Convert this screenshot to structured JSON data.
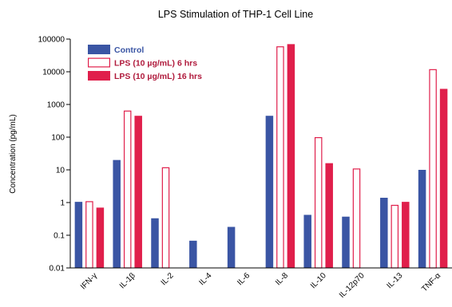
{
  "chart_data": {
    "type": "bar",
    "title": "LPS Stimulation of THP-1 Cell Line",
    "xlabel": "",
    "ylabel": "Concentration (pg/mL)",
    "yscale": "log",
    "ylim": [
      0.01,
      100000
    ],
    "yticks": [
      "0.01",
      "0.1",
      "1",
      "10",
      "100",
      "1000",
      "10000",
      "100000"
    ],
    "categories": [
      "IFN-γ",
      "IL-1β",
      "IL-2",
      "IL-4",
      "IL-6",
      "IL-8",
      "IL-10",
      "IL-12p70",
      "IL-13",
      "TNF-α"
    ],
    "series": [
      {
        "name": "Control",
        "style": "solid",
        "color": "#3a55a4",
        "values": [
          1.05,
          20,
          0.33,
          0.068,
          0.18,
          450,
          0.42,
          0.37,
          1.4,
          10
        ]
      },
      {
        "name": "LPS (10 µg/mL) 6 hrs",
        "style": "outline",
        "color": "#e01f4b",
        "values": [
          1.1,
          650,
          12,
          null,
          null,
          60000,
          100,
          11,
          0.85,
          12000
        ]
      },
      {
        "name": "LPS (10 µg/mL) 16 hrs",
        "style": "solid",
        "color": "#e01f4b",
        "values": [
          0.7,
          450,
          null,
          null,
          null,
          70000,
          16,
          null,
          1.05,
          3000
        ]
      }
    ],
    "legend_position": "top-left",
    "grid": false,
    "legend_text_colors": [
      "#3a55a4",
      "#b01a3c",
      "#b01a3c"
    ]
  }
}
